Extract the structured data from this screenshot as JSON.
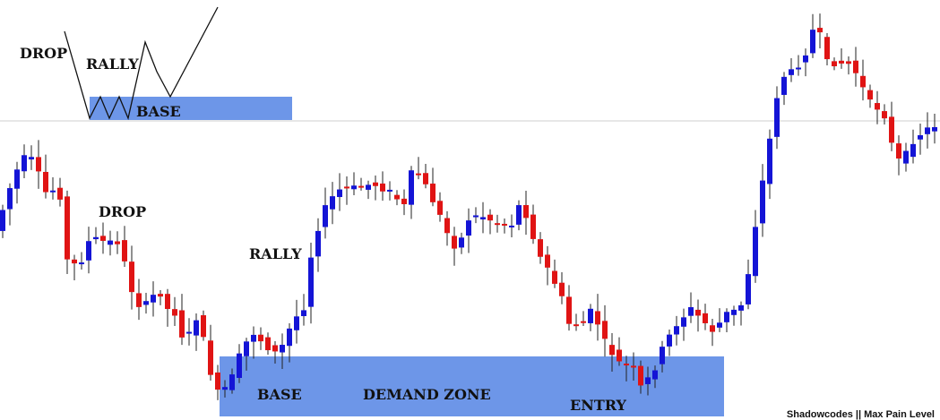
{
  "labels": {
    "top_drop": "DROP",
    "top_rally": "RALLY",
    "top_base": "BASE",
    "drop": "DROP",
    "rally": "RALLY",
    "base": "BASE",
    "demand_zone": "DEMAND ZONE",
    "entry": "ENTRY"
  },
  "footer": "Shadowcodes || Max Pain Level"
}
